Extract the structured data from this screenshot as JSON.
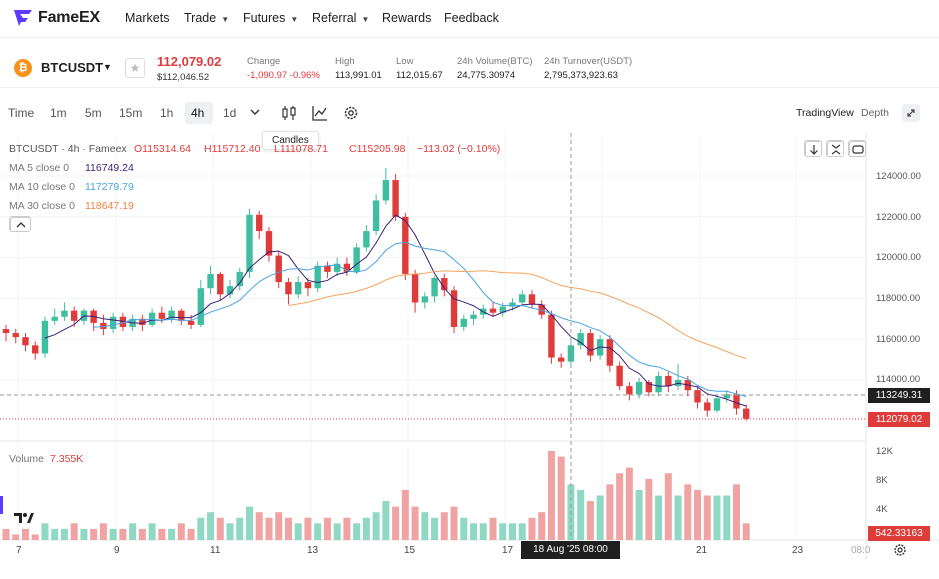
{
  "nav": {
    "brand": "FameEX",
    "items": [
      {
        "label": "Markets",
        "caret": false
      },
      {
        "label": "Trade",
        "caret": true
      },
      {
        "label": "Futures",
        "caret": true
      },
      {
        "label": "Referral",
        "caret": true
      },
      {
        "label": "Rewards",
        "caret": false
      },
      {
        "label": "Feedback",
        "caret": false
      }
    ]
  },
  "ticker": {
    "coin_glyph": "₿",
    "symbol": "BTCUSDT",
    "price": "112,079.02",
    "price_usd": "$112,046.52",
    "stats": [
      {
        "label": "Change",
        "value": "-1,090.97 -0.96%",
        "neg": true
      },
      {
        "label": "High",
        "value": "113,991.01"
      },
      {
        "label": "Low",
        "value": "112,015.67"
      },
      {
        "label": "24h Volume(BTC)",
        "value": "24,775.30974"
      },
      {
        "label": "24h Turnover(USDT)",
        "value": "2,795,373,923.63"
      }
    ]
  },
  "toolbar": {
    "time_label": "Time",
    "timeframes": [
      "1m",
      "5m",
      "15m",
      "1h",
      "4h",
      "1d"
    ],
    "selected_timeframe": "4h",
    "tooltip": "Candles",
    "tradingview": "TradingView",
    "depth": "Depth"
  },
  "legend": {
    "title": "BTCUSDT · 4h · Fameex",
    "ohlc": [
      {
        "k": "O",
        "v": "115314.64"
      },
      {
        "k": "H",
        "v": "115712.40"
      },
      {
        "k": "L",
        "v": "111078.71"
      },
      {
        "k": "C",
        "v": "115205.98"
      },
      {
        "k": "chg",
        "v": "−113.02 (−0.10%)"
      }
    ],
    "ma": [
      {
        "label": "MA 5 close 0",
        "value": "116749.24",
        "color": "#3b1f7a"
      },
      {
        "label": "MA 10 close 0",
        "value": "117279.79",
        "color": "#4aa3df"
      },
      {
        "label": "MA 30 close 0",
        "value": "118647.19",
        "color": "#f4a460"
      }
    ],
    "volume_label": "Volume",
    "volume_value": "7.355K"
  },
  "colors": {
    "up": "#3fbf9f",
    "down": "#e03b3b",
    "up_vol": "#8fd9c4",
    "down_vol": "#f0a3a3"
  },
  "axes": {
    "price_ticks": [
      "124000.00",
      "122000.00",
      "120000.00",
      "118000.00",
      "116000.00",
      "114000.00"
    ],
    "crosshair_price": "113249.31",
    "last_price": "112079.02",
    "vol_ticks": [
      "12K",
      "8K",
      "4K"
    ],
    "vol_crosshair": "542.33163",
    "x_ticks": [
      "7",
      "9",
      "11",
      "13",
      "15",
      "17",
      "21",
      "23",
      "08:0"
    ],
    "x_highlight": "18 Aug '25   08:00"
  },
  "chart_data": {
    "type": "candlestick",
    "interval": "4h",
    "symbol": "BTCUSDT",
    "y_range": [
      112000,
      124000
    ],
    "candles": [
      [
        116500,
        116300,
        116700,
        115900
      ],
      [
        116300,
        116100,
        116500,
        115800
      ],
      [
        116100,
        115700,
        116300,
        115400
      ],
      [
        115700,
        115300,
        115900,
        115000
      ],
      [
        115300,
        116900,
        117100,
        115100
      ],
      [
        116900,
        117100,
        117500,
        116700
      ],
      [
        117100,
        117400,
        117800,
        116900
      ],
      [
        117400,
        116900,
        117600,
        116600
      ],
      [
        116900,
        117400,
        117500,
        116700
      ],
      [
        117400,
        116800,
        117500,
        116400
      ],
      [
        116800,
        116500,
        117200,
        116200
      ],
      [
        116500,
        117100,
        117300,
        116300
      ],
      [
        117100,
        116600,
        117300,
        116400
      ],
      [
        116600,
        117000,
        117200,
        116400
      ],
      [
        117000,
        116700,
        117200,
        116400
      ],
      [
        116700,
        117300,
        117500,
        116600
      ],
      [
        117300,
        117000,
        117600,
        116800
      ],
      [
        117000,
        117400,
        117600,
        116800
      ],
      [
        117400,
        116900,
        117500,
        116700
      ],
      [
        116900,
        116700,
        117200,
        116500
      ],
      [
        116700,
        118500,
        118900,
        116600
      ],
      [
        118500,
        119200,
        119600,
        118200
      ],
      [
        119200,
        118200,
        119300,
        117900
      ],
      [
        118200,
        118600,
        118900,
        118000
      ],
      [
        118600,
        119300,
        119500,
        118400
      ],
      [
        119300,
        122100,
        122400,
        119000
      ],
      [
        122100,
        121300,
        122300,
        120900
      ],
      [
        121300,
        120100,
        121500,
        119800
      ],
      [
        120100,
        118800,
        120300,
        118500
      ],
      [
        118800,
        118200,
        119000,
        117700
      ],
      [
        118200,
        118800,
        119100,
        118000
      ],
      [
        118800,
        118500,
        119000,
        118100
      ],
      [
        118500,
        119600,
        119800,
        118300
      ],
      [
        119600,
        119300,
        119800,
        119000
      ],
      [
        119300,
        119700,
        120000,
        119100
      ],
      [
        119700,
        119300,
        120000,
        119100
      ],
      [
        119300,
        120500,
        120700,
        119200
      ],
      [
        120500,
        121300,
        121600,
        120300
      ],
      [
        121300,
        122800,
        123100,
        121100
      ],
      [
        122800,
        123800,
        124400,
        122600
      ],
      [
        123800,
        122000,
        124100,
        121800
      ],
      [
        122000,
        119200,
        122200,
        118900
      ],
      [
        119200,
        117800,
        119400,
        117300
      ],
      [
        117800,
        118100,
        118300,
        117500
      ],
      [
        118100,
        119000,
        119100,
        117800
      ],
      [
        119000,
        118400,
        119200,
        118100
      ],
      [
        118400,
        116600,
        118600,
        116300
      ],
      [
        116600,
        117000,
        117200,
        116400
      ],
      [
        117000,
        117200,
        117400,
        116700
      ],
      [
        117200,
        117500,
        117700,
        117000
      ],
      [
        117500,
        117300,
        117800,
        117100
      ],
      [
        117300,
        117600,
        117800,
        117100
      ],
      [
        117600,
        117800,
        118000,
        117400
      ],
      [
        117800,
        118200,
        118400,
        117600
      ],
      [
        118200,
        117700,
        118400,
        117500
      ],
      [
        117700,
        117200,
        117900,
        117000
      ],
      [
        117200,
        115100,
        117400,
        114800
      ],
      [
        115100,
        114900,
        115300,
        114600
      ],
      [
        114900,
        115700,
        116000,
        114700
      ],
      [
        115700,
        116300,
        116500,
        115500
      ],
      [
        116300,
        115200,
        116500,
        114900
      ],
      [
        115200,
        116000,
        116200,
        115000
      ],
      [
        116000,
        114700,
        116200,
        114400
      ],
      [
        114700,
        113700,
        114900,
        113500
      ],
      [
        113700,
        113300,
        113900,
        113000
      ],
      [
        113300,
        113900,
        114100,
        113100
      ],
      [
        113900,
        113400,
        114000,
        113200
      ],
      [
        113400,
        114200,
        114400,
        113200
      ],
      [
        114200,
        113700,
        114400,
        113400
      ],
      [
        113700,
        114000,
        114800,
        113500
      ],
      [
        114000,
        113500,
        114200,
        113200
      ],
      [
        113500,
        112900,
        113700,
        112600
      ],
      [
        112900,
        112500,
        113100,
        112200
      ],
      [
        112500,
        113100,
        113300,
        112400
      ],
      [
        113100,
        113300,
        113500,
        112900
      ],
      [
        113300,
        112600,
        113500,
        112300
      ],
      [
        112600,
        112100,
        112800,
        112000
      ]
    ],
    "volumes": [
      2,
      1,
      2,
      1,
      3,
      2,
      2,
      3,
      2,
      2,
      3,
      2,
      2,
      3,
      2,
      3,
      2,
      2,
      3,
      2,
      4,
      5,
      4,
      3,
      4,
      6,
      5,
      4,
      5,
      4,
      3,
      4,
      3,
      4,
      3,
      4,
      3,
      4,
      5,
      7,
      6,
      9,
      6,
      5,
      4,
      5,
      6,
      4,
      3,
      3,
      4,
      3,
      3,
      3,
      4,
      5,
      16,
      15,
      10,
      9,
      7,
      8,
      10,
      12,
      13,
      9,
      11,
      8,
      12,
      8,
      10,
      9,
      8,
      8,
      8,
      10,
      3
    ]
  }
}
